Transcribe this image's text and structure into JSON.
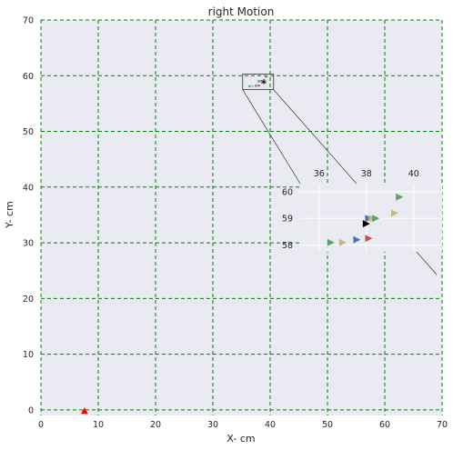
{
  "chart_data": {
    "type": "scatter",
    "title": "right Motion",
    "xlabel": "X- cm",
    "ylabel": "Y- cm",
    "xlim": [
      0,
      70
    ],
    "ylim": [
      -1,
      70
    ],
    "xticks": [
      "0",
      "10",
      "20",
      "30",
      "40",
      "50",
      "60",
      "70"
    ],
    "yticks": [
      "0",
      "10",
      "20",
      "30",
      "40",
      "50",
      "60",
      "70"
    ],
    "grid": true,
    "grid_style": "dashed",
    "colors": {
      "axes_bg": "#eaeaf2",
      "grid": "#008000",
      "blue": "#4c72b0",
      "green": "#55a868",
      "red": "#c44e52",
      "tan": "#ccb974",
      "black": "#000000",
      "bright_red": "#ff0000"
    },
    "main_points": [
      {
        "x": 7.6,
        "y": -0.2,
        "marker": "triangle-up",
        "color": "bright_red"
      },
      {
        "x": 38.9,
        "y": 58.6,
        "marker": "star",
        "color": "black"
      }
    ],
    "inset": {
      "zoom_region": {
        "xlim": [
          35.2,
          40.6
        ],
        "ylim": [
          57.5,
          60.3
        ]
      },
      "xlim": [
        35.2,
        41.2
      ],
      "ylim": [
        57.75,
        60.3
      ],
      "xticks": [
        "36",
        "38",
        "40"
      ],
      "yticks": [
        "58",
        "59",
        "60"
      ],
      "points": [
        {
          "x": 36.5,
          "y": 58.1,
          "color": "green"
        },
        {
          "x": 37.0,
          "y": 58.1,
          "color": "tan"
        },
        {
          "x": 37.6,
          "y": 58.2,
          "color": "blue"
        },
        {
          "x": 38.1,
          "y": 58.25,
          "color": "red"
        },
        {
          "x": 38.0,
          "y": 58.8,
          "color": "black"
        },
        {
          "x": 38.1,
          "y": 59.0,
          "color": "blue"
        },
        {
          "x": 38.25,
          "y": 59.0,
          "color": "tan"
        },
        {
          "x": 38.4,
          "y": 59.0,
          "color": "green"
        },
        {
          "x": 39.2,
          "y": 59.2,
          "color": "tan"
        },
        {
          "x": 39.4,
          "y": 59.8,
          "color": "green"
        }
      ]
    }
  }
}
